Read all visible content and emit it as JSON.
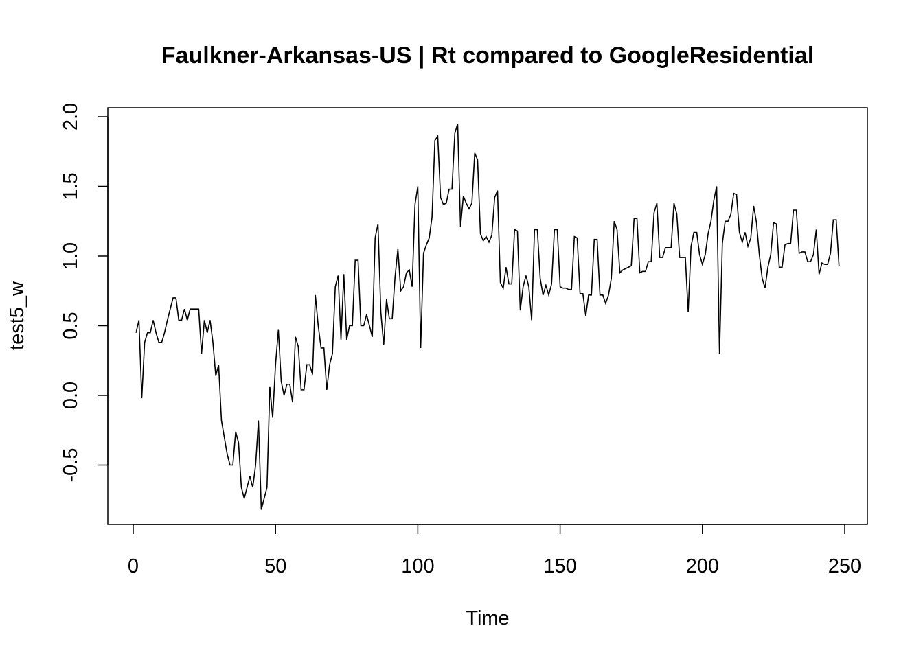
{
  "chart_data": {
    "type": "line",
    "title": "Faulkner-Arkansas-US | Rt compared to GoogleResidential",
    "xlabel": "Time",
    "ylabel": "test5_w",
    "xlim": [
      0,
      250
    ],
    "ylim": [
      -0.85,
      2.0
    ],
    "xticks": [
      0,
      50,
      100,
      150,
      200,
      250
    ],
    "yticks": [
      -0.5,
      0.0,
      0.5,
      1.0,
      1.5,
      2.0
    ],
    "xtick_labels": [
      "0",
      "50",
      "100",
      "150",
      "200",
      "250"
    ],
    "ytick_labels": [
      "-0.5",
      "0.0",
      "0.5",
      "1.0",
      "1.5",
      "2.0"
    ],
    "grid": false,
    "legend": "none",
    "line_color": "#000000",
    "series": [
      {
        "x": [
          1,
          2,
          3,
          4,
          5,
          6,
          7,
          8,
          9,
          10,
          11,
          12,
          13,
          14,
          15,
          16,
          17,
          18,
          19,
          20,
          21,
          22,
          23,
          24,
          25,
          26,
          27,
          28,
          29,
          30,
          31,
          32,
          33,
          34,
          35,
          36,
          37,
          38,
          39,
          40,
          41,
          42,
          43,
          44,
          45,
          46,
          47,
          48,
          49,
          50,
          51,
          52,
          53,
          54,
          55,
          56,
          57,
          58,
          59,
          60,
          61,
          62,
          63,
          64,
          65,
          66,
          67,
          68,
          69,
          70,
          71,
          72,
          73,
          74,
          75,
          76,
          77,
          78,
          79,
          80,
          81,
          82,
          83,
          84,
          85,
          86,
          87,
          88,
          89,
          90,
          91,
          92,
          93,
          94,
          95,
          96,
          97,
          98,
          99,
          100,
          101,
          102,
          103,
          104,
          105,
          106,
          107,
          108,
          109,
          110,
          111,
          112,
          113,
          114,
          115,
          116,
          117,
          118,
          119,
          120,
          121,
          122,
          123,
          124,
          125,
          126,
          127,
          128,
          129,
          130,
          131,
          132,
          133,
          134,
          135,
          136,
          137,
          138,
          139,
          140,
          141,
          142,
          143,
          144,
          145,
          146,
          147,
          148,
          149,
          150,
          151,
          152,
          153,
          154,
          155,
          156,
          157,
          158,
          159,
          160,
          161,
          162,
          163,
          164,
          165,
          166,
          167,
          168,
          169,
          170,
          171,
          172,
          173,
          174,
          175,
          176,
          177,
          178,
          179,
          180,
          181,
          182,
          183,
          184,
          185,
          186,
          187,
          188,
          189,
          190,
          191,
          192,
          193,
          194,
          195,
          196,
          197,
          198,
          199,
          200,
          201,
          202,
          203,
          204,
          205,
          206,
          207,
          208,
          209,
          210,
          211,
          212,
          213,
          214,
          215,
          216,
          217,
          218,
          219,
          220,
          221,
          222,
          223,
          224,
          225,
          226,
          227,
          228,
          229,
          230,
          231,
          232,
          233,
          234,
          235,
          236,
          237,
          238,
          239,
          240,
          241,
          242,
          243,
          244,
          245,
          246,
          247,
          248
        ],
        "values": [
          0.45,
          0.54,
          -0.02,
          0.38,
          0.45,
          0.45,
          0.54,
          0.45,
          0.38,
          0.38,
          0.45,
          0.54,
          0.62,
          0.7,
          0.7,
          0.54,
          0.54,
          0.62,
          0.54,
          0.62,
          0.62,
          0.62,
          0.62,
          0.3,
          0.54,
          0.45,
          0.54,
          0.38,
          0.14,
          0.22,
          -0.18,
          -0.3,
          -0.42,
          -0.5,
          -0.5,
          -0.26,
          -0.34,
          -0.66,
          -0.74,
          -0.66,
          -0.58,
          -0.66,
          -0.5,
          -0.18,
          -0.82,
          -0.74,
          -0.66,
          0.06,
          -0.16,
          0.22,
          0.47,
          0.1,
          0.0,
          0.08,
          0.08,
          -0.05,
          0.42,
          0.35,
          0.04,
          0.04,
          0.22,
          0.22,
          0.15,
          0.72,
          0.5,
          0.34,
          0.34,
          0.04,
          0.22,
          0.3,
          0.78,
          0.86,
          0.4,
          0.87,
          0.4,
          0.5,
          0.5,
          0.97,
          0.97,
          0.5,
          0.5,
          0.58,
          0.5,
          0.42,
          1.13,
          1.23,
          0.6,
          0.36,
          0.69,
          0.55,
          0.55,
          0.85,
          1.05,
          0.75,
          0.78,
          0.88,
          0.9,
          0.78,
          1.37,
          1.5,
          0.34,
          1.02,
          1.08,
          1.13,
          1.28,
          1.83,
          1.86,
          1.42,
          1.37,
          1.38,
          1.48,
          1.48,
          1.88,
          1.95,
          1.21,
          1.43,
          1.38,
          1.34,
          1.38,
          1.74,
          1.69,
          1.16,
          1.11,
          1.14,
          1.1,
          1.15,
          1.42,
          1.47,
          0.81,
          0.77,
          0.92,
          0.8,
          0.8,
          1.19,
          1.18,
          0.61,
          0.78,
          0.86,
          0.78,
          0.54,
          1.19,
          1.19,
          0.84,
          0.72,
          0.79,
          0.72,
          0.8,
          1.19,
          1.19,
          0.78,
          0.77,
          0.77,
          0.76,
          0.76,
          1.14,
          1.13,
          0.73,
          0.73,
          0.57,
          0.72,
          0.72,
          1.12,
          1.12,
          0.72,
          0.72,
          0.66,
          0.72,
          0.84,
          1.25,
          1.19,
          0.88,
          0.9,
          0.91,
          0.92,
          0.93,
          1.27,
          1.27,
          0.88,
          0.89,
          0.89,
          0.96,
          0.96,
          1.31,
          1.38,
          0.99,
          0.99,
          1.06,
          1.06,
          1.06,
          1.38,
          1.3,
          0.99,
          0.99,
          0.99,
          0.6,
          1.07,
          1.17,
          1.17,
          1.01,
          0.94,
          1.01,
          1.16,
          1.25,
          1.4,
          1.5,
          0.3,
          1.09,
          1.25,
          1.25,
          1.3,
          1.45,
          1.44,
          1.17,
          1.1,
          1.17,
          1.07,
          1.13,
          1.36,
          1.24,
          1.01,
          0.84,
          0.77,
          0.92,
          1.01,
          1.24,
          1.23,
          0.92,
          0.92,
          1.08,
          1.09,
          1.09,
          1.33,
          1.33,
          1.02,
          1.03,
          1.03,
          0.96,
          0.96,
          1.01,
          1.19,
          0.87,
          0.95,
          0.94,
          0.94,
          1.02,
          1.26,
          1.26,
          0.93
        ]
      }
    ]
  }
}
